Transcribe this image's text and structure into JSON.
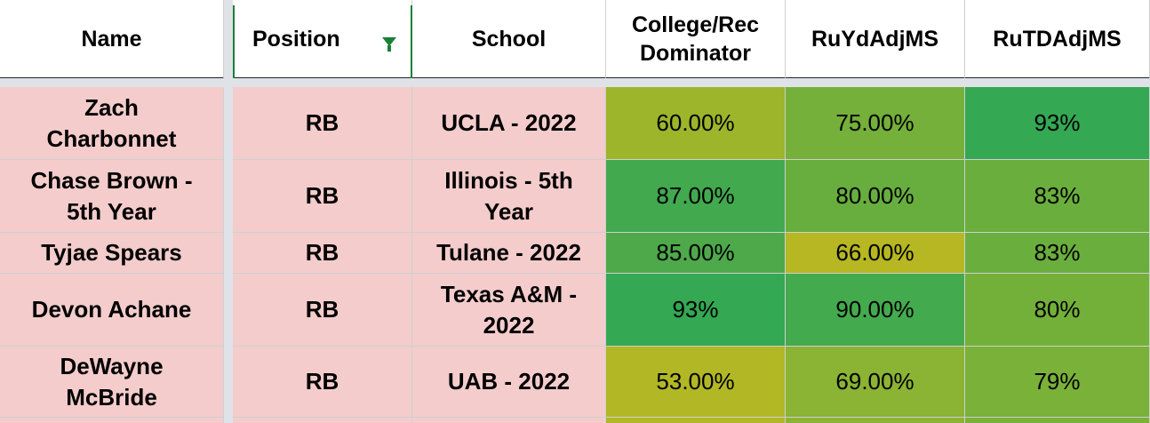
{
  "headers": {
    "name": "Name",
    "position": "Position",
    "school": "School",
    "dominator_line1": "College/Rec",
    "dominator_line2": "Dominator",
    "ruyd": "RuYdAdjMS",
    "rutd": "RuTDAdjMS"
  },
  "rows": [
    {
      "name_l1": "Zach",
      "name_l2": "Charbonnet",
      "position": "RB",
      "school_l1": "UCLA - 2022",
      "school_l2": "",
      "dominator": "60.00%",
      "ruyd": "75.00%",
      "rutd": "93%"
    },
    {
      "name_l1": "Chase Brown -",
      "name_l2": "5th Year",
      "position": "RB",
      "school_l1": "Illinois - 5th",
      "school_l2": "Year",
      "dominator": "87.00%",
      "ruyd": "80.00%",
      "rutd": "83%"
    },
    {
      "name_l1": "Tyjae Spears",
      "name_l2": "",
      "position": "RB",
      "school_l1": "Tulane - 2022",
      "school_l2": "",
      "dominator": "85.00%",
      "ruyd": "66.00%",
      "rutd": "83%"
    },
    {
      "name_l1": "Devon Achane",
      "name_l2": "",
      "position": "RB",
      "school_l1": "Texas A&M -",
      "school_l2": "2022",
      "dominator": "93%",
      "ruyd": "90.00%",
      "rutd": "80%"
    },
    {
      "name_l1": "DeWayne",
      "name_l2": "McBride",
      "position": "RB",
      "school_l1": "UAB - 2022",
      "school_l2": "",
      "dominator": "53.00%",
      "ruyd": "69.00%",
      "rutd": "79%"
    }
  ],
  "colors": {
    "pink_fill": "#f4cccc",
    "filter_green": "#188038",
    "heat": {
      "r0": [
        "#9cb52b",
        "#74b03a",
        "#34a853"
      ],
      "r1": [
        "#42a94e",
        "#67ae3e",
        "#6aaf3d"
      ],
      "r2": [
        "#4ea94b",
        "#b6b722",
        "#6aaf3d"
      ],
      "r3": [
        "#34a853",
        "#44aa4e",
        "#73b03a"
      ],
      "r4": [
        "#b2b726",
        "#8bb334",
        "#7ab139"
      ]
    }
  },
  "icons": {
    "filter": "filter-funnel-icon"
  }
}
